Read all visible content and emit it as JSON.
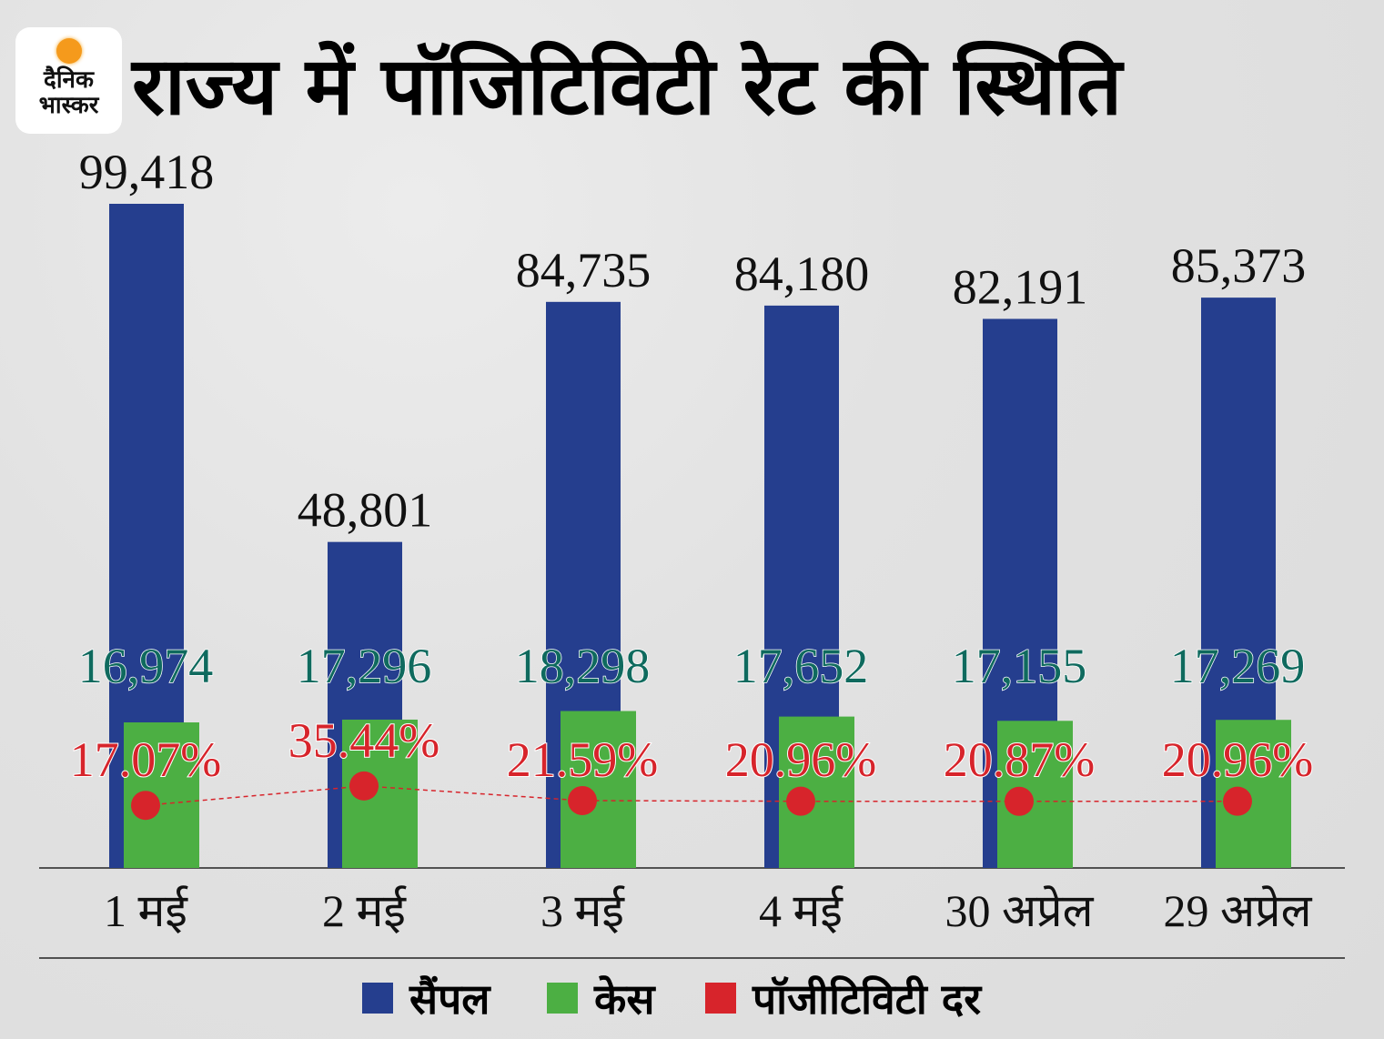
{
  "logo": {
    "text_line1": "दैनिक",
    "text_line2": "भास्कर",
    "sun_color": "#f59a1c"
  },
  "title": "राज्य में पॉजिटिविटी रेट की स्थिति",
  "chart_data": {
    "type": "bar",
    "title": "राज्य में पॉजिटिविटी रेट की स्थिति",
    "categories": [
      "1 मई",
      "2 मई",
      "3 मई",
      "4 मई",
      "30 अप्रेल",
      "29 अप्रेल"
    ],
    "series": [
      {
        "name": "सैंपल",
        "type": "bar",
        "color": "#253e8e",
        "values": [
          99418,
          48801,
          84735,
          84180,
          82191,
          85373
        ],
        "labels": [
          "99,418",
          "48,801",
          "84,735",
          "84,180",
          "82,191",
          "85,373"
        ]
      },
      {
        "name": "केस",
        "type": "bar",
        "color": "#4caf43",
        "values": [
          16974,
          17296,
          18298,
          17652,
          17155,
          17269
        ],
        "labels": [
          "16,974",
          "17,296",
          "18,298",
          "17,652",
          "17,155",
          "17,269"
        ]
      },
      {
        "name": "पॉजीटिविटी दर",
        "type": "line",
        "color": "#d7242b",
        "values": [
          17.07,
          35.44,
          21.59,
          20.96,
          20.87,
          20.96
        ],
        "labels": [
          "17.07%",
          "35.44%",
          "21.59%",
          "20.96%",
          "20.87%",
          "20.96%"
        ]
      }
    ],
    "legend": "bottom",
    "grid": false,
    "cases_label_color": "#0f6a5e"
  }
}
